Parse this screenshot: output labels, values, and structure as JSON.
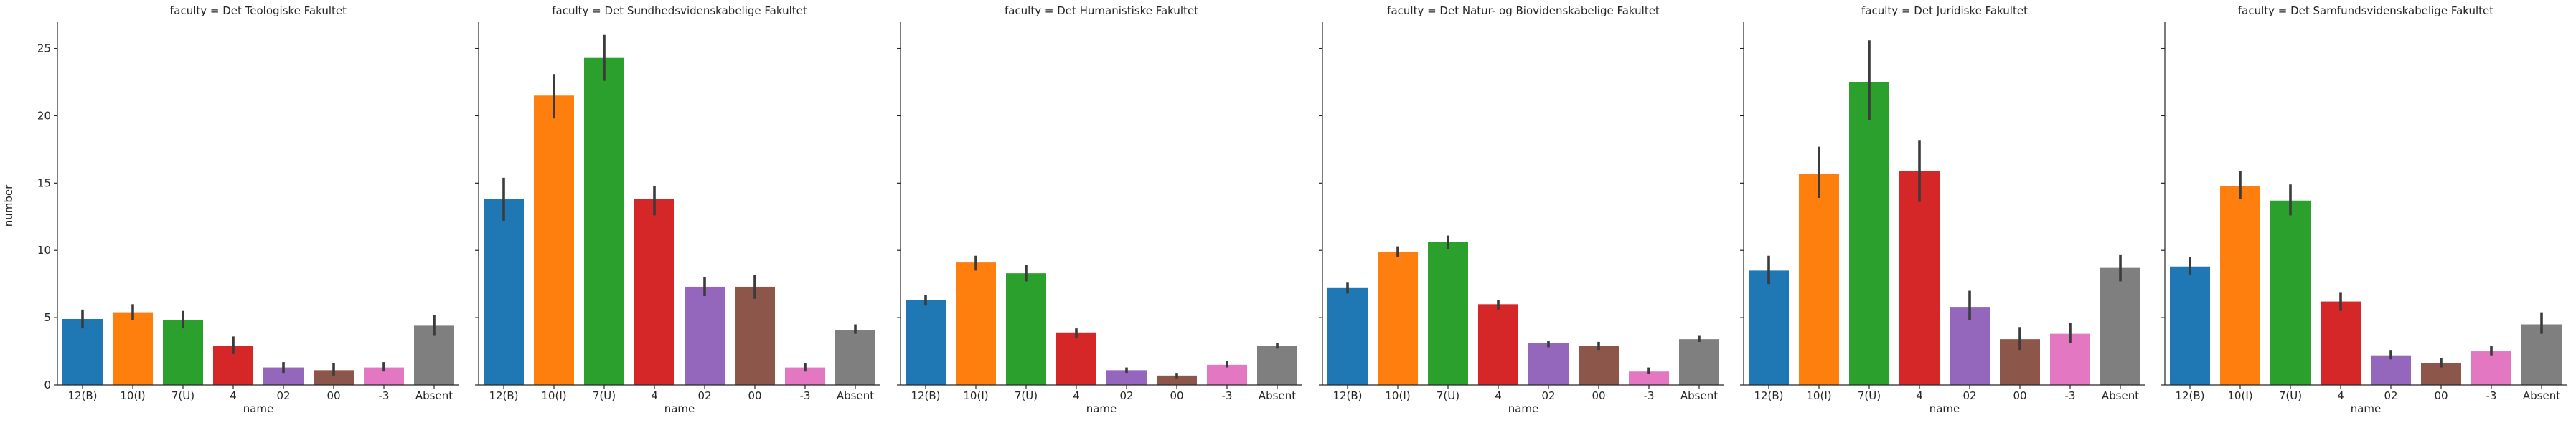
{
  "chart_data": {
    "type": "bar",
    "facet_variable": "faculty",
    "xlabel": "name",
    "ylabel": "number",
    "ylim": [
      0,
      27
    ],
    "yticks": [
      0,
      5,
      10,
      15,
      20,
      25
    ],
    "categories": [
      "12(B)",
      "10(I)",
      "7(U)",
      "4",
      "02",
      "00",
      "-3",
      "Absent"
    ],
    "colors": [
      "#1f77b4",
      "#ff7f0e",
      "#2ca02c",
      "#d62728",
      "#9467bd",
      "#8c564b",
      "#e377c2",
      "#7f7f7f"
    ],
    "error_bar_color": "#3b3b3b",
    "panels": [
      {
        "title": "faculty = Det Teologiske Fakultet",
        "values": [
          4.9,
          5.4,
          4.8,
          2.9,
          1.3,
          1.1,
          1.3,
          4.4
        ],
        "err_low": [
          4.2,
          4.8,
          4.2,
          2.3,
          0.9,
          0.7,
          1.0,
          3.7
        ],
        "err_high": [
          5.6,
          6.0,
          5.5,
          3.6,
          1.7,
          1.6,
          1.7,
          5.2
        ]
      },
      {
        "title": "faculty = Det Sundhedsvidenskabelige Fakultet",
        "values": [
          13.8,
          21.5,
          24.3,
          13.8,
          7.3,
          7.3,
          1.3,
          4.1
        ],
        "err_low": [
          12.2,
          19.8,
          22.6,
          12.6,
          6.6,
          6.4,
          1.0,
          3.8
        ],
        "err_high": [
          15.4,
          23.1,
          26.0,
          14.8,
          8.0,
          8.2,
          1.6,
          4.5
        ]
      },
      {
        "title": "faculty = Det Humanistiske Fakultet",
        "values": [
          6.3,
          9.1,
          8.3,
          3.9,
          1.1,
          0.7,
          1.5,
          2.9
        ],
        "err_low": [
          5.9,
          8.5,
          7.7,
          3.5,
          0.9,
          0.5,
          1.3,
          2.7
        ],
        "err_high": [
          6.7,
          9.6,
          8.9,
          4.2,
          1.3,
          0.9,
          1.8,
          3.1
        ]
      },
      {
        "title": "faculty = Det Natur- og Biovidenskabelige Fakultet",
        "values": [
          7.2,
          9.9,
          10.6,
          6.0,
          3.1,
          2.9,
          1.0,
          3.4
        ],
        "err_low": [
          6.8,
          9.5,
          10.1,
          5.6,
          2.8,
          2.6,
          0.8,
          3.2
        ],
        "err_high": [
          7.6,
          10.3,
          11.1,
          6.3,
          3.3,
          3.2,
          1.3,
          3.7
        ]
      },
      {
        "title": "faculty = Det Juridiske Fakultet",
        "values": [
          8.5,
          15.7,
          22.5,
          15.9,
          5.8,
          3.4,
          3.8,
          8.7
        ],
        "err_low": [
          7.5,
          13.9,
          19.7,
          13.6,
          4.8,
          2.6,
          3.1,
          7.7
        ],
        "err_high": [
          9.6,
          17.7,
          25.6,
          18.2,
          7.0,
          4.3,
          4.6,
          9.7
        ]
      },
      {
        "title": "faculty = Det Samfundsvidenskabelige Fakultet",
        "values": [
          8.8,
          14.8,
          13.7,
          6.2,
          2.2,
          1.6,
          2.5,
          4.5
        ],
        "err_low": [
          8.2,
          13.8,
          12.6,
          5.5,
          1.9,
          1.3,
          2.2,
          3.8
        ],
        "err_high": [
          9.5,
          15.9,
          14.9,
          6.9,
          2.6,
          2.0,
          2.9,
          5.4
        ]
      }
    ]
  }
}
